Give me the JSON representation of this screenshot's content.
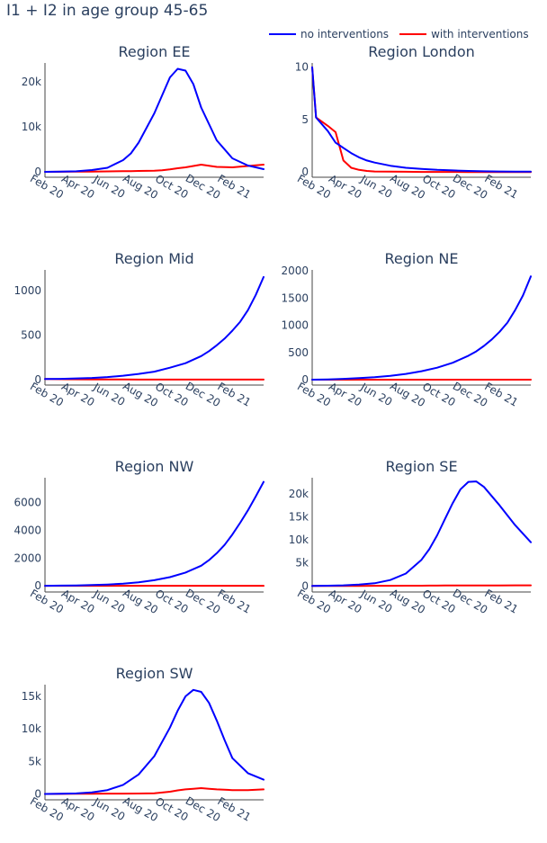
{
  "title": "I1 + I2 in age group 45-65",
  "legend": [
    {
      "name": "no interventions",
      "color": "#0000ff"
    },
    {
      "name": "with interventions",
      "color": "#ff0000"
    }
  ],
  "chart_data": [
    {
      "type": "line",
      "title": "Region EE",
      "x_ticks": [
        "Feb 20",
        "Apr 20",
        "Jun 20",
        "Aug 20",
        "Oct 20",
        "Dec 20",
        "Feb 21"
      ],
      "y_ticks": [
        "0",
        "10k",
        "20k"
      ],
      "y_tick_values": [
        0,
        10000,
        20000
      ],
      "ylim": [
        -1200,
        24200
      ],
      "x_months": [
        0,
        1,
        2,
        3,
        4,
        5,
        5.5,
        6,
        7,
        7.5,
        8,
        8.5,
        9,
        9.5,
        10,
        11,
        12,
        13,
        14
      ],
      "series": [
        {
          "name": "no interventions",
          "color": "#0000ff",
          "values": [
            0,
            40,
            120,
            400,
            900,
            2600,
            4100,
            6500,
            13000,
            17000,
            21000,
            22900,
            22500,
            19500,
            14300,
            7000,
            3000,
            1400,
            600
          ]
        },
        {
          "name": "with interventions",
          "color": "#ff0000",
          "values": [
            0,
            20,
            40,
            70,
            100,
            150,
            170,
            200,
            250,
            350,
            550,
            800,
            1000,
            1300,
            1600,
            1100,
            1000,
            1300,
            1600
          ]
        }
      ]
    },
    {
      "type": "line",
      "title": "Region London",
      "x_ticks": [
        "Feb 20",
        "Apr 20",
        "Jun 20",
        "Aug 20",
        "Oct 20",
        "Dec 20",
        "Feb 21"
      ],
      "y_ticks": [
        "0",
        "5",
        "10"
      ],
      "y_tick_values": [
        0,
        5,
        10
      ],
      "ylim": [
        -0.5,
        10.4
      ],
      "x_months": [
        0,
        0.25,
        1,
        1.5,
        2,
        2.5,
        3,
        3.5,
        4,
        5,
        6,
        7,
        8,
        9,
        10,
        11,
        12,
        13,
        14
      ],
      "series": [
        {
          "name": "no interventions",
          "color": "#0000ff",
          "values": [
            10,
            5.2,
            3.9,
            2.8,
            2.3,
            1.8,
            1.4,
            1.1,
            0.9,
            0.6,
            0.4,
            0.3,
            0.2,
            0.15,
            0.1,
            0.07,
            0.05,
            0.04,
            0.03
          ]
        },
        {
          "name": "with interventions",
          "color": "#ff0000",
          "values": [
            10,
            5.2,
            4.4,
            3.8,
            1.1,
            0.4,
            0.2,
            0.1,
            0.05,
            0.03,
            0.02,
            0.01,
            0.01,
            0.01,
            0,
            0,
            0,
            0,
            0
          ]
        }
      ]
    },
    {
      "type": "line",
      "title": "Region Mid",
      "x_ticks": [
        "Feb 20",
        "Apr 20",
        "Jun 20",
        "Aug 20",
        "Oct 20",
        "Dec 20",
        "Feb 21"
      ],
      "y_ticks": [
        "0",
        "500",
        "1000"
      ],
      "y_tick_values": [
        0,
        500,
        1000
      ],
      "ylim": [
        -60,
        1230
      ],
      "x_months": [
        0,
        1,
        2,
        3,
        4,
        5,
        6,
        7,
        8,
        9,
        10,
        10.5,
        11,
        11.5,
        12,
        12.5,
        13,
        13.5,
        14
      ],
      "series": [
        {
          "name": "no interventions",
          "color": "#0000ff",
          "values": [
            8,
            10,
            15,
            20,
            30,
            45,
            65,
            90,
            135,
            185,
            265,
            320,
            385,
            460,
            550,
            650,
            780,
            950,
            1150
          ]
        },
        {
          "name": "with interventions",
          "color": "#ff0000",
          "values": [
            8,
            6,
            4,
            3,
            2,
            2,
            1,
            1,
            1,
            1,
            1,
            1,
            1,
            1,
            1,
            1,
            1,
            1,
            1
          ]
        }
      ]
    },
    {
      "type": "line",
      "title": "Region NE",
      "x_ticks": [
        "Feb 20",
        "Apr 20",
        "Jun 20",
        "Aug 20",
        "Oct 20",
        "Dec 20",
        "Feb 21"
      ],
      "y_ticks": [
        "0",
        "500",
        "1000",
        "1500",
        "2000"
      ],
      "y_tick_values": [
        0,
        500,
        1000,
        1500,
        2000
      ],
      "ylim": [
        -100,
        2020
      ],
      "x_months": [
        0,
        1,
        2,
        3,
        4,
        5,
        6,
        7,
        8,
        9,
        10,
        10.5,
        11,
        11.5,
        12,
        12.5,
        13,
        13.5,
        14
      ],
      "series": [
        {
          "name": "no interventions",
          "color": "#0000ff",
          "values": [
            0,
            5,
            15,
            30,
            45,
            70,
            105,
            155,
            220,
            310,
            440,
            520,
            620,
            740,
            880,
            1050,
            1280,
            1550,
            1900
          ]
        },
        {
          "name": "with interventions",
          "color": "#ff0000",
          "values": [
            0,
            0,
            0,
            0,
            0,
            0,
            0,
            0,
            0,
            0,
            0,
            0,
            0,
            0,
            0,
            0,
            0,
            0,
            0
          ]
        }
      ]
    },
    {
      "type": "line",
      "title": "Region NW",
      "x_ticks": [
        "Feb 20",
        "Apr 20",
        "Jun 20",
        "Aug 20",
        "Oct 20",
        "Dec 20",
        "Feb 21"
      ],
      "y_ticks": [
        "0",
        "2000",
        "4000",
        "6000"
      ],
      "y_tick_values": [
        0,
        2000,
        4000,
        6000
      ],
      "ylim": [
        -450,
        7800
      ],
      "x_months": [
        0,
        1,
        2,
        3,
        4,
        5,
        6,
        7,
        8,
        9,
        10,
        10.5,
        11,
        11.5,
        12,
        12.5,
        13,
        13.5,
        14
      ],
      "series": [
        {
          "name": "no interventions",
          "color": "#0000ff",
          "values": [
            0,
            10,
            25,
            50,
            90,
            150,
            250,
            400,
            620,
            950,
            1450,
            1850,
            2350,
            2950,
            3700,
            4550,
            5450,
            6450,
            7500
          ]
        },
        {
          "name": "with interventions",
          "color": "#ff0000",
          "values": [
            0,
            0,
            0,
            0,
            0,
            0,
            0,
            0,
            0,
            0,
            0,
            0,
            0,
            0,
            0,
            0,
            0,
            0,
            0
          ]
        }
      ]
    },
    {
      "type": "line",
      "title": "Region SE",
      "x_ticks": [
        "Feb 20",
        "Apr 20",
        "Jun 20",
        "Aug 20",
        "Oct 20",
        "Dec 20",
        "Feb 21"
      ],
      "y_ticks": [
        "0",
        "5k",
        "10k",
        "15k",
        "20k"
      ],
      "y_tick_values": [
        0,
        5000,
        10000,
        15000,
        20000
      ],
      "ylim": [
        -1300,
        23500
      ],
      "x_months": [
        0,
        1,
        2,
        3,
        4,
        5,
        6,
        7,
        7.5,
        8,
        8.5,
        9,
        9.5,
        10,
        10.5,
        11,
        12,
        13,
        14
      ],
      "series": [
        {
          "name": "no interventions",
          "color": "#0000ff",
          "values": [
            0,
            60,
            150,
            300,
            600,
            1300,
            2700,
            5700,
            8000,
            11000,
            14500,
            18000,
            21000,
            22600,
            22700,
            21500,
            17500,
            13200,
            9500
          ]
        },
        {
          "name": "with interventions",
          "color": "#ff0000",
          "values": [
            0,
            10,
            20,
            30,
            40,
            50,
            60,
            70,
            80,
            90,
            100,
            110,
            115,
            120,
            125,
            130,
            135,
            140,
            145
          ]
        }
      ]
    },
    {
      "type": "line",
      "title": "Region SW",
      "x_ticks": [
        "Feb 20",
        "Apr 20",
        "Jun 20",
        "Aug 20",
        "Oct 20",
        "Dec 20",
        "Feb 21"
      ],
      "y_ticks": [
        "0",
        "5k",
        "10k",
        "15k"
      ],
      "y_tick_values": [
        0,
        5000,
        10000,
        15000
      ],
      "ylim": [
        -900,
        16800
      ],
      "x_months": [
        0,
        1,
        2,
        3,
        4,
        5,
        6,
        7,
        8,
        8.5,
        9,
        9.5,
        10,
        10.5,
        11,
        11.5,
        12,
        13,
        14
      ],
      "series": [
        {
          "name": "no interventions",
          "color": "#0000ff",
          "values": [
            0,
            20,
            80,
            250,
            600,
            1400,
            3000,
            5800,
            10200,
            12800,
            15000,
            16000,
            15700,
            14000,
            11300,
            8300,
            5500,
            3200,
            2200
          ]
        },
        {
          "name": "with interventions",
          "color": "#ff0000",
          "values": [
            0,
            10,
            20,
            30,
            50,
            60,
            70,
            100,
            350,
            550,
            700,
            800,
            900,
            800,
            700,
            650,
            600,
            600,
            700
          ]
        }
      ]
    }
  ]
}
